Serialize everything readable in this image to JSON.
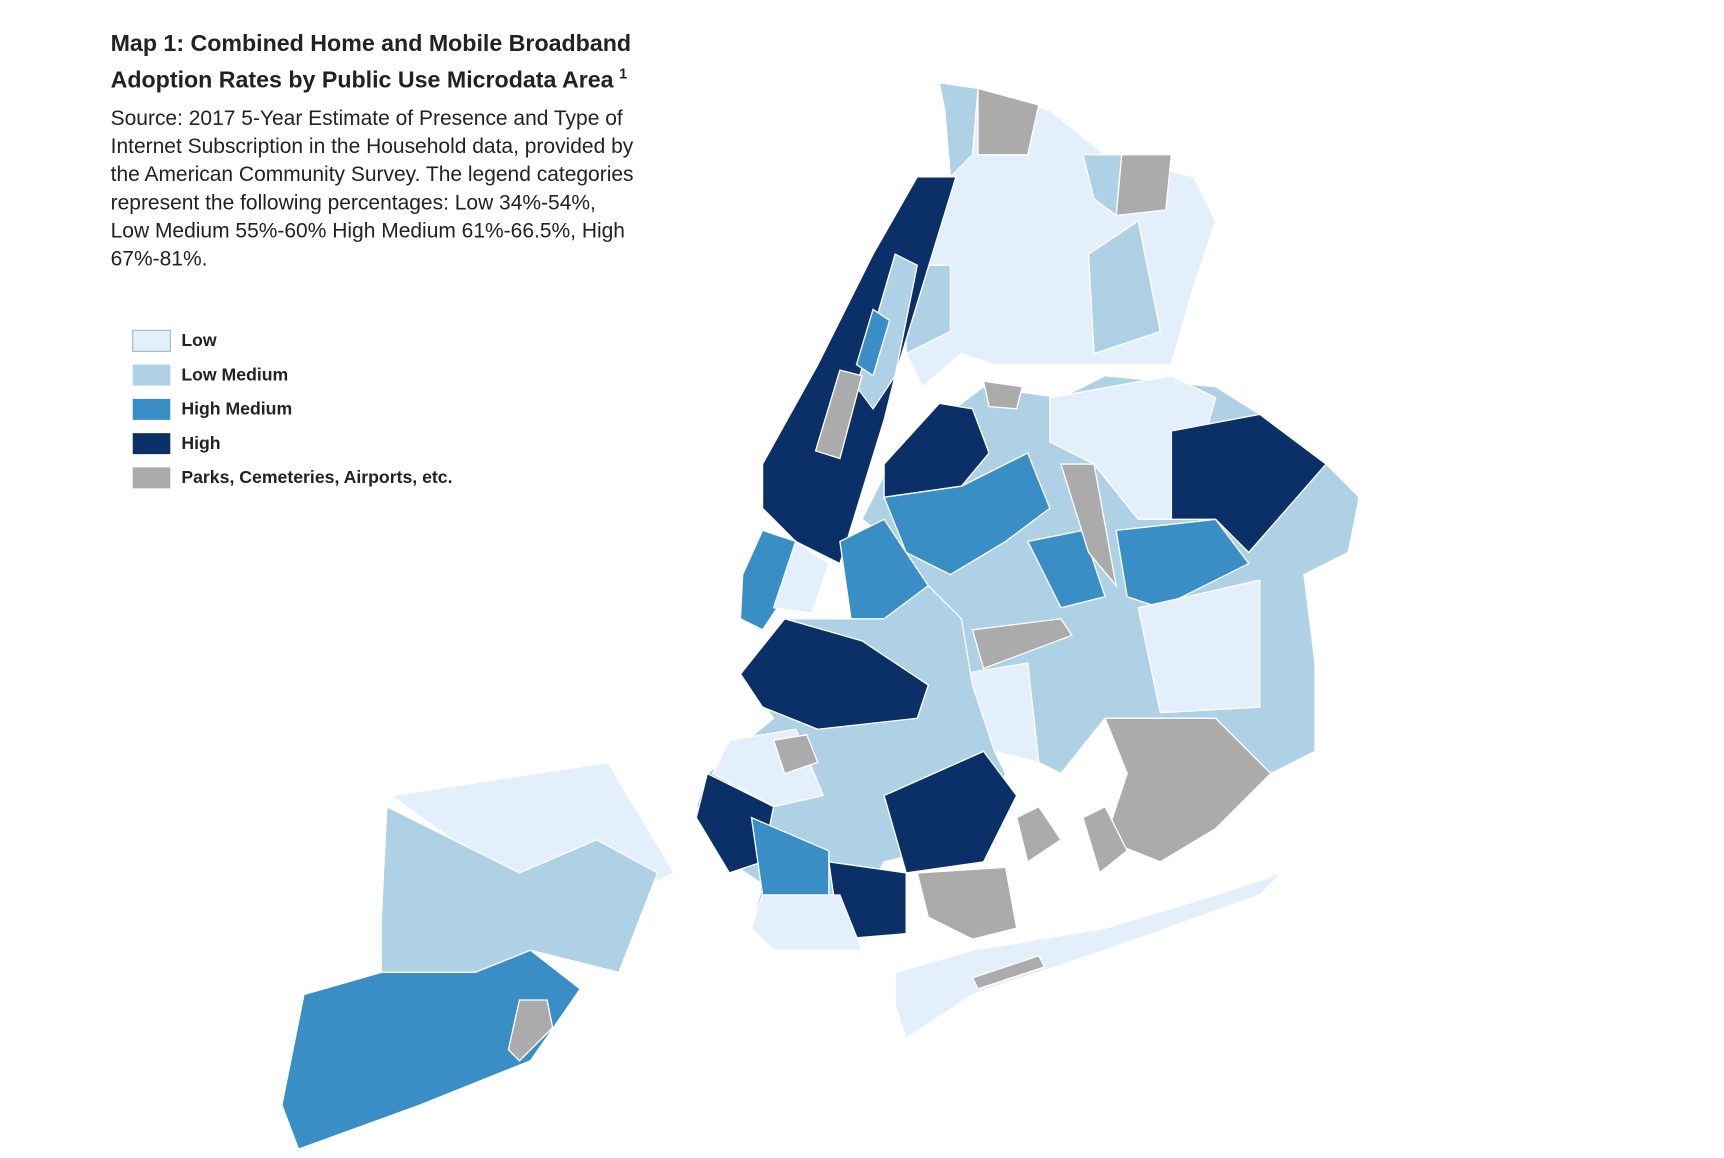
{
  "header": {
    "title_lines": [
      "Map 1: Combined Home and Mobile Broadband",
      "Adoption Rates by Public Use Microdata Area"
    ],
    "title_note": "1",
    "source_lines": [
      "Source: 2017 5-Year Estimate of Presence and Type of",
      "Internet Subscription in the Household data, provided by",
      "the American Community Survey. The legend categories",
      "represent the following percentages: Low 34%-54%,",
      "Low Medium 55%-60% High Medium 61%-66.5%, High",
      "67%-81%."
    ]
  },
  "legend": {
    "items": [
      {
        "label": "Low",
        "color": "#e3f0fb"
      },
      {
        "label": "Low Medium",
        "color": "#aed1e6"
      },
      {
        "label": "High Medium",
        "color": "#3a8ec6"
      },
      {
        "label": "High",
        "color": "#0b3068"
      },
      {
        "label": "Parks, Cemeteries, Airports, etc.",
        "color": "#ababab"
      }
    ]
  }
}
